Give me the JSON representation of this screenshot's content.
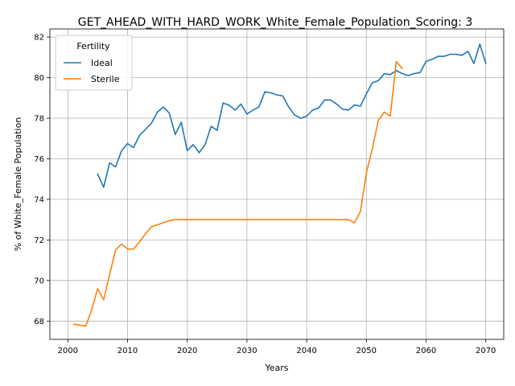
{
  "chart_data": {
    "type": "line",
    "title": "GET_AHEAD_WITH_HARD_WORK_White_Female_Population_Scoring: 3",
    "xlabel": "Years",
    "ylabel": "% of White_Female Population",
    "xlim": [
      1997,
      2073
    ],
    "ylim": [
      67.1,
      82.4
    ],
    "x_ticks": [
      2000,
      2010,
      2020,
      2030,
      2040,
      2050,
      2060,
      2070
    ],
    "y_ticks": [
      68,
      70,
      72,
      74,
      76,
      78,
      80,
      82
    ],
    "grid": true,
    "legend": {
      "title": "Fertility",
      "placement": "top-left"
    },
    "series": [
      {
        "name": "Ideal",
        "color": "#1f77b4",
        "x": [
          2005,
          2006,
          2007,
          2008,
          2009,
          2010,
          2011,
          2012,
          2013,
          2014,
          2015,
          2016,
          2017,
          2018,
          2019,
          2020,
          2021,
          2022,
          2023,
          2024,
          2025,
          2026,
          2027,
          2028,
          2029,
          2030,
          2031,
          2032,
          2033,
          2034,
          2035,
          2036,
          2037,
          2038,
          2039,
          2040,
          2041,
          2042,
          2043,
          2044,
          2045,
          2046,
          2047,
          2048,
          2049,
          2050,
          2051,
          2052,
          2053,
          2054,
          2055,
          2056,
          2057,
          2058,
          2059,
          2060,
          2061,
          2062,
          2063,
          2064,
          2065,
          2066,
          2067,
          2068,
          2069,
          2070
        ],
        "values": [
          75.25,
          74.6,
          75.8,
          75.6,
          76.4,
          76.75,
          76.55,
          77.15,
          77.45,
          77.75,
          78.3,
          78.55,
          78.25,
          77.2,
          77.8,
          76.4,
          76.7,
          76.3,
          76.7,
          77.6,
          77.4,
          78.75,
          78.65,
          78.4,
          78.7,
          78.2,
          78.4,
          78.55,
          79.3,
          79.25,
          79.15,
          79.1,
          78.55,
          78.15,
          78.0,
          78.1,
          78.4,
          78.5,
          78.9,
          78.9,
          78.7,
          78.45,
          78.4,
          78.65,
          78.6,
          79.2,
          79.75,
          79.85,
          80.2,
          80.15,
          80.35,
          80.2,
          80.1,
          80.2,
          80.25,
          80.8,
          80.9,
          81.05,
          81.05,
          81.15,
          81.15,
          81.1,
          81.3,
          80.7,
          81.65,
          80.7
        ]
      },
      {
        "name": "Sterile",
        "color": "#ff7f0e",
        "x": [
          2001,
          2002,
          2003,
          2004,
          2005,
          2006,
          2007,
          2008,
          2009,
          2010,
          2011,
          2012,
          2013,
          2014,
          2015,
          2016,
          2017,
          2018,
          2019,
          2020,
          2021,
          2022,
          2023,
          2024,
          2025,
          2026,
          2027,
          2028,
          2029,
          2030,
          2031,
          2032,
          2033,
          2034,
          2035,
          2036,
          2037,
          2038,
          2039,
          2040,
          2041,
          2042,
          2043,
          2044,
          2045,
          2046,
          2047,
          2048,
          2049,
          2050,
          2051,
          2052,
          2053,
          2054,
          2055,
          2056
        ],
        "values": [
          67.85,
          67.8,
          67.75,
          68.55,
          69.6,
          69.05,
          70.3,
          71.5,
          71.8,
          71.55,
          71.55,
          71.9,
          72.3,
          72.65,
          72.75,
          72.85,
          72.95,
          73.0,
          73.0,
          73.0,
          73.0,
          73.0,
          73.0,
          73.0,
          73.0,
          73.0,
          73.0,
          73.0,
          73.0,
          73.0,
          73.0,
          73.0,
          73.0,
          73.0,
          73.0,
          73.0,
          73.0,
          73.0,
          73.0,
          73.0,
          73.0,
          73.0,
          73.0,
          73.0,
          73.0,
          73.0,
          73.0,
          72.85,
          73.4,
          75.3,
          76.5,
          77.9,
          78.3,
          78.1,
          80.8,
          80.45
        ]
      }
    ]
  }
}
